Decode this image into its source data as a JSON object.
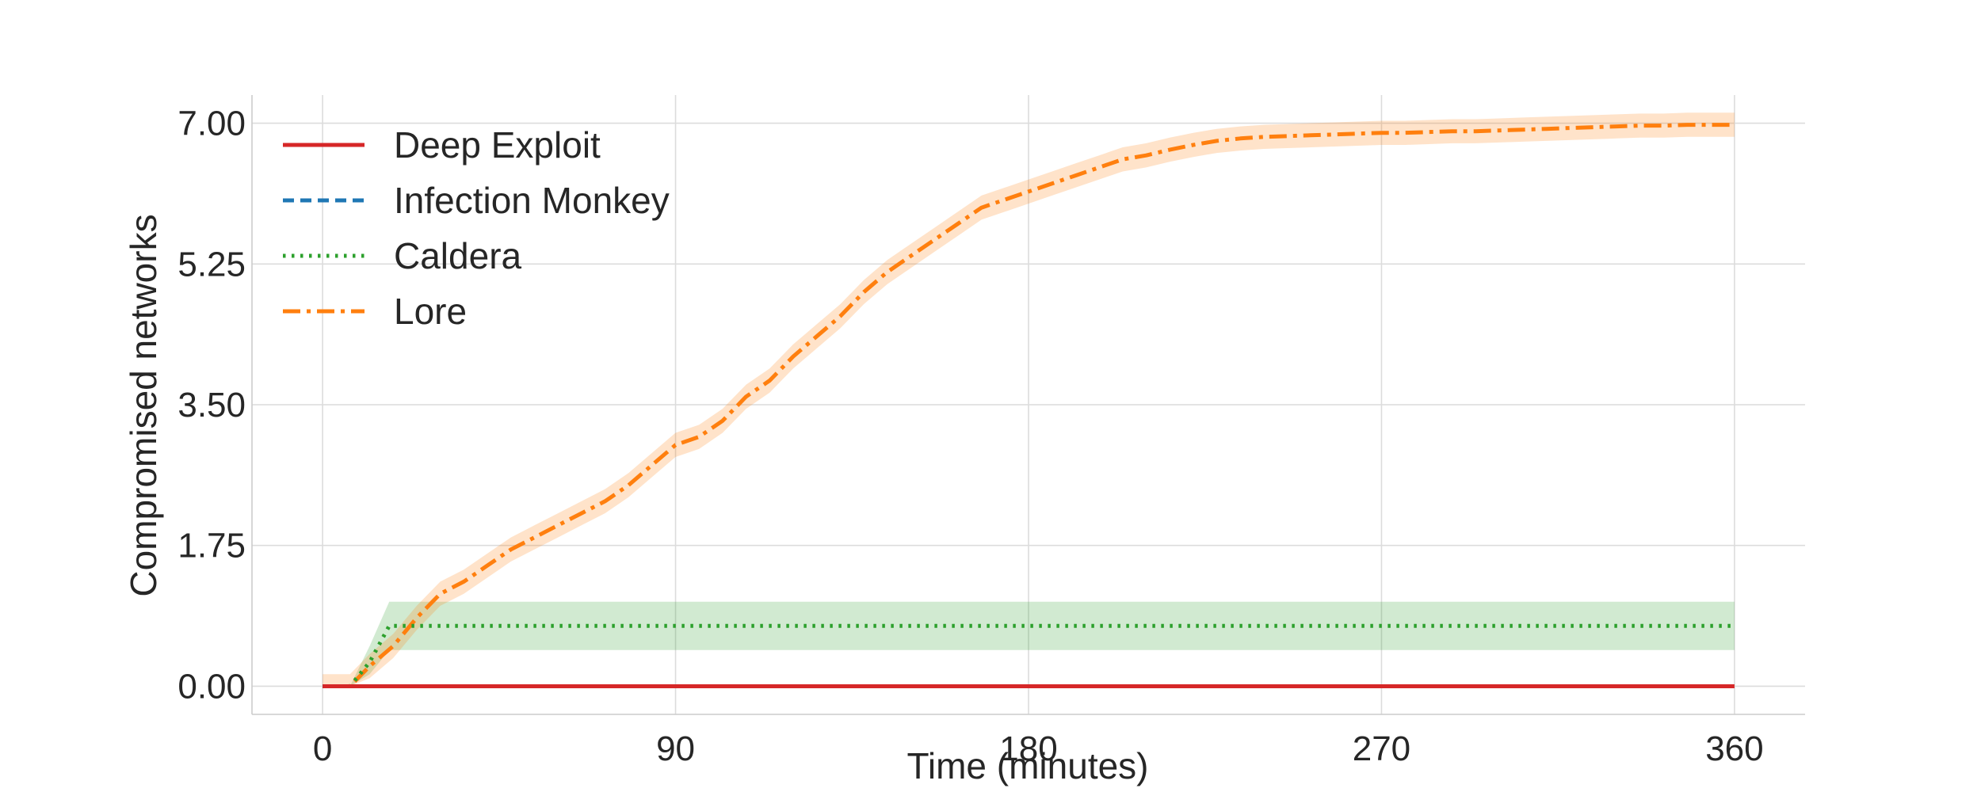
{
  "chart_data": {
    "type": "line",
    "title": "",
    "xlabel": "Time (minutes)",
    "ylabel": "Compromised networks",
    "xlim": [
      -18,
      378
    ],
    "ylim": [
      -0.35,
      7.35
    ],
    "x_ticks": [
      0,
      90,
      180,
      270,
      360
    ],
    "x_tick_labels": [
      "0",
      "90",
      "180",
      "270",
      "360"
    ],
    "y_ticks": [
      0,
      1.75,
      3.5,
      5.25,
      7.0
    ],
    "y_tick_labels": [
      "0.00",
      "1.75",
      "3.50",
      "5.25",
      "7.00"
    ],
    "grid": true,
    "legend_position": "top-left",
    "series": [
      {
        "name": "Deep Exploit",
        "color": "#d62728",
        "style": "solid",
        "x": [
          0,
          360
        ],
        "y": [
          0,
          0
        ]
      },
      {
        "name": "Infection Monkey",
        "color": "#1f77b4",
        "style": "dashed",
        "x": [
          0,
          360
        ],
        "y": [
          0,
          0
        ]
      },
      {
        "name": "Caldera",
        "color": "#2ca02c",
        "style": "dotted",
        "x": [
          0,
          7,
          12,
          17,
          360
        ],
        "y": [
          0,
          0,
          0.3,
          0.75,
          0.75
        ],
        "band_lower": [
          0,
          0,
          0.15,
          0.45,
          0.45
        ],
        "band_upper": [
          0,
          0,
          0.5,
          1.05,
          1.05
        ]
      },
      {
        "name": "Lore",
        "color": "#ff7f0e",
        "style": "dashdot",
        "x": [
          0,
          7,
          12,
          18,
          24,
          30,
          36,
          42,
          48,
          54,
          60,
          66,
          72,
          78,
          84,
          90,
          96,
          102,
          108,
          114,
          120,
          126,
          132,
          138,
          144,
          150,
          156,
          162,
          168,
          174,
          180,
          186,
          192,
          198,
          204,
          210,
          216,
          222,
          228,
          234,
          240,
          246,
          252,
          258,
          264,
          270,
          276,
          282,
          288,
          294,
          300,
          306,
          312,
          318,
          324,
          330,
          336,
          342,
          348,
          354,
          360
        ],
        "y": [
          0,
          0,
          0.25,
          0.5,
          0.85,
          1.15,
          1.3,
          1.5,
          1.7,
          1.85,
          2.0,
          2.15,
          2.3,
          2.5,
          2.75,
          3.0,
          3.1,
          3.3,
          3.6,
          3.8,
          4.1,
          4.35,
          4.6,
          4.9,
          5.15,
          5.35,
          5.55,
          5.75,
          5.95,
          6.05,
          6.15,
          6.25,
          6.35,
          6.45,
          6.55,
          6.6,
          6.67,
          6.73,
          6.78,
          6.81,
          6.83,
          6.84,
          6.85,
          6.86,
          6.87,
          6.88,
          6.88,
          6.89,
          6.9,
          6.9,
          6.91,
          6.92,
          6.93,
          6.94,
          6.95,
          6.96,
          6.97,
          6.97,
          6.98,
          6.98,
          6.98
        ],
        "band_halfwidth": 0.15
      }
    ]
  }
}
